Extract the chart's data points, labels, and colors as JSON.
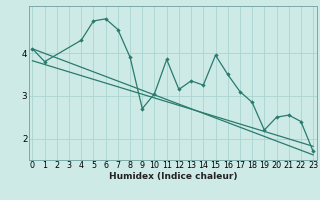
{
  "xlabel": "Humidex (Indice chaleur)",
  "bg_color": "#ceeae7",
  "grid_color": "#aad4d0",
  "line_color": "#2a7a6e",
  "spine_color": "#7aaaa8",
  "x_ticks": [
    0,
    1,
    2,
    3,
    4,
    5,
    6,
    7,
    8,
    9,
    10,
    11,
    12,
    13,
    14,
    15,
    16,
    17,
    18,
    19,
    20,
    21,
    22,
    23
  ],
  "y_ticks": [
    2,
    3,
    4
  ],
  "ylim": [
    1.5,
    5.1
  ],
  "xlim": [
    -0.3,
    23.3
  ],
  "series1_x": [
    0,
    1,
    4,
    5,
    6,
    7,
    8,
    9,
    10,
    11,
    12,
    13,
    14,
    15,
    16,
    17,
    18,
    19,
    20,
    21,
    22,
    23
  ],
  "series1_y": [
    4.1,
    3.8,
    4.3,
    4.75,
    4.8,
    4.55,
    3.9,
    2.7,
    3.05,
    3.85,
    3.15,
    3.35,
    3.25,
    3.95,
    3.5,
    3.1,
    2.85,
    2.2,
    2.5,
    2.55,
    2.4,
    1.7
  ],
  "trend1_x": [
    0,
    23
  ],
  "trend1_y": [
    4.1,
    1.62
  ],
  "trend2_x": [
    0,
    23
  ],
  "trend2_y": [
    3.82,
    1.82
  ],
  "xlabel_fontsize": 6.5,
  "tick_fontsize": 5.8
}
